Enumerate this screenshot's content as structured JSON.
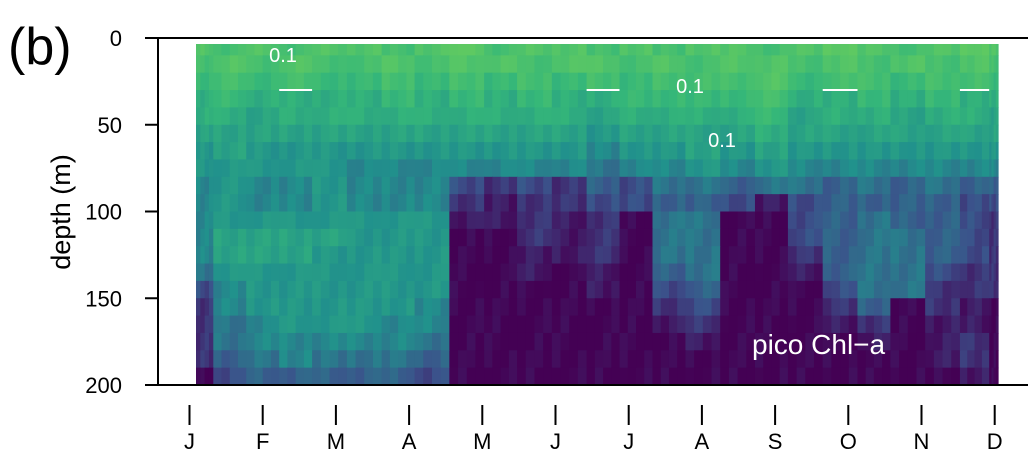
{
  "panel_label": "(b)",
  "chart_data": {
    "type": "heatmap",
    "title": "",
    "xlabel": "",
    "ylabel": "depth (m)",
    "x_ticks": [
      "J",
      "F",
      "M",
      "A",
      "M",
      "J",
      "J",
      "A",
      "S",
      "O",
      "N",
      "D"
    ],
    "y_ticks": [
      0,
      50,
      100,
      150,
      200
    ],
    "ylim": [
      200,
      0
    ],
    "y_inverted": true,
    "x_range_months": [
      1,
      12
    ],
    "colormap": "viridis",
    "colors": {
      "low": "#440154",
      "mid": "#2c7f8e",
      "high": "#4fc57d",
      "contour": "#ffffff"
    },
    "contour_level": 0.1,
    "contour_labels": [
      "0.1",
      "0.1",
      "0.1"
    ],
    "annotation": "pico Chl−a",
    "profile_months": [
      1.1,
      1.55,
      2.0,
      2.45,
      2.9,
      3.4,
      3.85,
      4.3,
      4.8,
      5.25,
      5.7,
      6.2,
      6.65,
      7.1,
      7.55,
      8.0,
      8.5,
      8.95,
      9.4,
      9.9,
      10.35,
      10.8,
      11.3,
      11.75,
      12.1
    ],
    "profile_depth_bins_m": [
      0,
      10,
      20,
      30,
      40,
      50,
      60,
      70,
      80,
      90,
      100,
      110,
      120,
      130,
      140,
      150,
      160,
      170,
      180,
      190
    ],
    "chl_matrix": [
      [
        0.12,
        0.11,
        0.12,
        0.11,
        0.12,
        0.12,
        0.11,
        0.12,
        0.13,
        0.11,
        0.12,
        0.12,
        0.11,
        0.12,
        0.11,
        0.12,
        0.12,
        0.11,
        0.12,
        0.13,
        0.12,
        0.11,
        0.12,
        0.13,
        0.12
      ],
      [
        0.11,
        0.12,
        0.11,
        0.12,
        0.11,
        0.11,
        0.12,
        0.11,
        0.12,
        0.12,
        0.11,
        0.12,
        0.12,
        0.11,
        0.12,
        0.11,
        0.12,
        0.12,
        0.11,
        0.12,
        0.11,
        0.12,
        0.11,
        0.12,
        0.11
      ],
      [
        0.1,
        0.11,
        0.1,
        0.11,
        0.1,
        0.1,
        0.11,
        0.1,
        0.11,
        0.1,
        0.11,
        0.1,
        0.11,
        0.1,
        0.11,
        0.11,
        0.11,
        0.12,
        0.1,
        0.11,
        0.11,
        0.1,
        0.11,
        0.11,
        0.1
      ],
      [
        0.09,
        0.1,
        0.09,
        0.09,
        0.09,
        0.09,
        0.1,
        0.09,
        0.1,
        0.09,
        0.1,
        0.09,
        0.09,
        0.1,
        0.1,
        0.1,
        0.1,
        0.11,
        0.09,
        0.09,
        0.1,
        0.09,
        0.1,
        0.09,
        0.09
      ],
      [
        0.09,
        0.09,
        0.08,
        0.09,
        0.09,
        0.09,
        0.09,
        0.09,
        0.09,
        0.09,
        0.09,
        0.09,
        0.08,
        0.09,
        0.09,
        0.09,
        0.09,
        0.1,
        0.08,
        0.09,
        0.09,
        0.08,
        0.09,
        0.09,
        0.08
      ],
      [
        0.08,
        0.08,
        0.08,
        0.08,
        0.08,
        0.08,
        0.08,
        0.08,
        0.08,
        0.08,
        0.08,
        0.08,
        0.07,
        0.08,
        0.08,
        0.08,
        0.08,
        0.09,
        0.08,
        0.08,
        0.08,
        0.08,
        0.08,
        0.08,
        0.08
      ],
      [
        0.07,
        0.08,
        0.07,
        0.07,
        0.07,
        0.07,
        0.07,
        0.07,
        0.07,
        0.07,
        0.07,
        0.07,
        0.06,
        0.07,
        0.07,
        0.08,
        0.07,
        0.08,
        0.07,
        0.07,
        0.07,
        0.07,
        0.07,
        0.07,
        0.07
      ],
      [
        0.07,
        0.07,
        0.07,
        0.07,
        0.07,
        0.06,
        0.06,
        0.06,
        0.06,
        0.06,
        0.06,
        0.06,
        0.05,
        0.06,
        0.06,
        0.07,
        0.06,
        0.07,
        0.06,
        0.06,
        0.06,
        0.06,
        0.06,
        0.06,
        0.06
      ],
      [
        0.06,
        0.07,
        0.06,
        0.06,
        0.07,
        0.06,
        0.06,
        0.06,
        0.03,
        0.02,
        0.03,
        0.02,
        0.04,
        0.03,
        0.05,
        0.05,
        0.04,
        0.05,
        0.05,
        0.04,
        0.05,
        0.04,
        0.05,
        0.04,
        0.04
      ],
      [
        0.06,
        0.07,
        0.06,
        0.06,
        0.07,
        0.06,
        0.06,
        0.06,
        0.02,
        0.01,
        0.02,
        0.02,
        0.03,
        0.03,
        0.04,
        0.04,
        0.03,
        0.01,
        0.03,
        0.04,
        0.04,
        0.04,
        0.04,
        0.03,
        0.03
      ],
      [
        0.06,
        0.07,
        0.07,
        0.07,
        0.07,
        0.07,
        0.07,
        0.07,
        0.01,
        0.01,
        0.02,
        0.01,
        0.02,
        0.0,
        0.05,
        0.05,
        0.0,
        0.0,
        0.03,
        0.04,
        0.05,
        0.04,
        0.04,
        0.03,
        0.02
      ],
      [
        0.06,
        0.08,
        0.08,
        0.08,
        0.08,
        0.07,
        0.07,
        0.07,
        0.0,
        0.0,
        0.02,
        0.01,
        0.02,
        0.0,
        0.05,
        0.05,
        0.0,
        0.0,
        0.03,
        0.04,
        0.05,
        0.05,
        0.04,
        0.03,
        0.02
      ],
      [
        0.06,
        0.08,
        0.08,
        0.08,
        0.07,
        0.07,
        0.07,
        0.07,
        0.0,
        0.0,
        0.01,
        0.01,
        0.02,
        0.0,
        0.05,
        0.05,
        0.0,
        0.0,
        0.02,
        0.04,
        0.05,
        0.05,
        0.04,
        0.03,
        0.02
      ],
      [
        0.05,
        0.07,
        0.07,
        0.07,
        0.07,
        0.07,
        0.07,
        0.07,
        0.0,
        0.0,
        0.01,
        0.0,
        0.01,
        0.0,
        0.04,
        0.05,
        0.0,
        0.0,
        0.01,
        0.04,
        0.05,
        0.05,
        0.03,
        0.02,
        0.02
      ],
      [
        0.03,
        0.06,
        0.07,
        0.07,
        0.07,
        0.07,
        0.07,
        0.07,
        0.0,
        0.0,
        0.0,
        0.0,
        0.01,
        0.0,
        0.03,
        0.04,
        0.0,
        0.0,
        0.0,
        0.03,
        0.05,
        0.05,
        0.02,
        0.02,
        0.02
      ],
      [
        0.02,
        0.06,
        0.07,
        0.07,
        0.07,
        0.07,
        0.07,
        0.06,
        0.0,
        0.0,
        0.0,
        0.0,
        0.0,
        0.0,
        0.02,
        0.03,
        0.0,
        0.0,
        0.0,
        0.02,
        0.04,
        0.0,
        0.02,
        0.01,
        0.0
      ],
      [
        0.02,
        0.05,
        0.06,
        0.07,
        0.07,
        0.07,
        0.06,
        0.06,
        0.0,
        0.0,
        0.0,
        0.0,
        0.0,
        0.0,
        0.01,
        0.02,
        0.0,
        0.0,
        0.0,
        0.01,
        0.02,
        0.0,
        0.01,
        0.01,
        0.0
      ],
      [
        0.02,
        0.05,
        0.06,
        0.06,
        0.06,
        0.06,
        0.06,
        0.05,
        0.0,
        0.0,
        0.0,
        0.0,
        0.0,
        0.0,
        0.0,
        0.01,
        0.0,
        0.0,
        0.0,
        0.0,
        0.01,
        0.0,
        0.01,
        0.02,
        0.0
      ],
      [
        0.02,
        0.04,
        0.05,
        0.06,
        0.05,
        0.05,
        0.05,
        0.04,
        0.0,
        0.0,
        0.0,
        0.0,
        0.0,
        0.0,
        0.0,
        0.0,
        0.0,
        0.0,
        0.0,
        0.0,
        0.0,
        0.0,
        0.01,
        0.02,
        0.0
      ],
      [
        0.0,
        0.03,
        0.04,
        0.04,
        0.04,
        0.04,
        0.04,
        0.03,
        0.0,
        0.0,
        0.0,
        0.0,
        0.0,
        0.0,
        0.0,
        0.0,
        0.0,
        0.0,
        0.0,
        0.0,
        0.0,
        0.0,
        0.0,
        0.01,
        0.0
      ]
    ]
  }
}
